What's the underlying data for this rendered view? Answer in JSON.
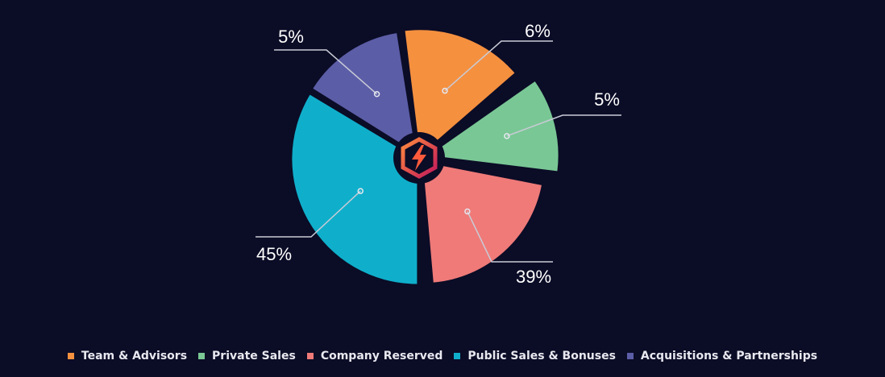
{
  "chart_data": {
    "type": "pie",
    "slices": [
      {
        "label": "Team & Advisors",
        "value_label": "6%",
        "color": "#f5903f"
      },
      {
        "label": "Private Sales",
        "value_label": "5%",
        "color": "#79c795"
      },
      {
        "label": "Company Reserved",
        "value_label": "39%",
        "color": "#ef7a78"
      },
      {
        "label": "Public Sales & Bonuses",
        "value_label": "45%",
        "color": "#0fafcb"
      },
      {
        "label": "Acquisitions & Partnerships",
        "value_label": "5%",
        "color": "#5c5da7"
      }
    ],
    "legend_position": "bottom",
    "center_icon": "lightning-hexagon-logo"
  },
  "colors": {
    "background": "#0b0c26",
    "leader_line": "#c9cbd6"
  }
}
